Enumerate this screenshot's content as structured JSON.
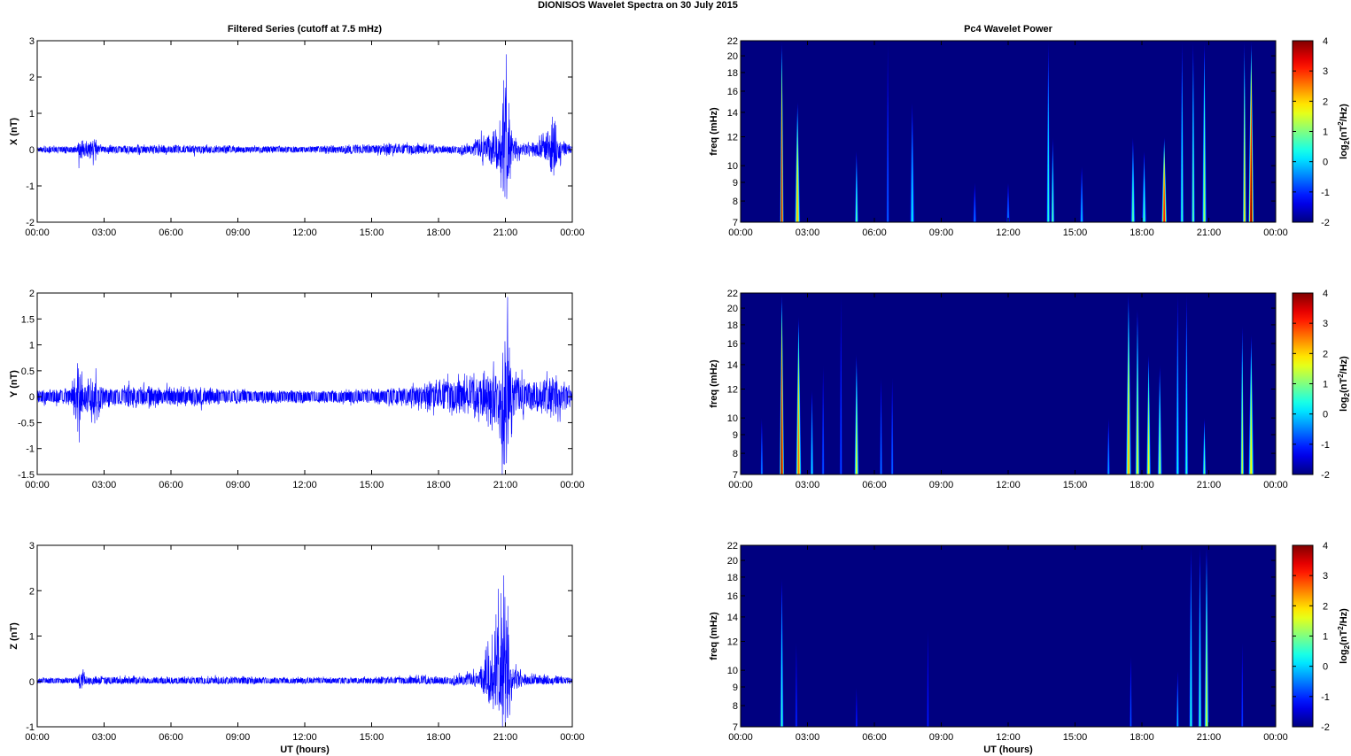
{
  "figure": {
    "title": "DIONISOS Wavelet Spectra on 30 July      2015"
  },
  "chart_data": [
    {
      "type": "line",
      "title": "Filtered Series (cutoff at 7.5 mHz)",
      "ylabel": "X (nT)",
      "xlabel": "",
      "x_ticks": [
        "00:00",
        "03:00",
        "06:00",
        "09:00",
        "12:00",
        "15:00",
        "18:00",
        "21:00",
        "00:00"
      ],
      "xlim_hours": [
        0,
        24
      ],
      "ylim": [
        -2,
        3
      ],
      "y_ticks": [
        "-2",
        "-1",
        "0",
        "1",
        "2",
        "3"
      ],
      "y_tick_values": [
        -2,
        -1,
        0,
        1,
        2,
        3
      ],
      "series_color": "#0000ff",
      "noise_floor": 0.04,
      "envelope": [
        [
          0,
          0.05
        ],
        [
          1.8,
          0.06
        ],
        [
          1.9,
          0.5
        ],
        [
          2.05,
          0.15
        ],
        [
          2.6,
          0.3
        ],
        [
          2.8,
          0.08
        ],
        [
          5.5,
          0.1
        ],
        [
          8,
          0.08
        ],
        [
          12,
          0.05
        ],
        [
          14,
          0.1
        ],
        [
          16.5,
          0.15
        ],
        [
          18,
          0.08
        ],
        [
          19.5,
          0.15
        ],
        [
          20.3,
          0.6
        ],
        [
          20.7,
          0.8
        ],
        [
          21.0,
          2.3
        ],
        [
          21.3,
          0.4
        ],
        [
          21.8,
          0.15
        ],
        [
          22.3,
          0.2
        ],
        [
          22.8,
          0.5
        ],
        [
          23.2,
          0.9
        ],
        [
          23.6,
          0.2
        ],
        [
          24,
          0.06
        ]
      ],
      "negative_scale": 0.9
    },
    {
      "type": "line",
      "title": "",
      "ylabel": "Y (nT)",
      "xlabel": "",
      "x_ticks": [
        "00:00",
        "03:00",
        "06:00",
        "09:00",
        "12:00",
        "15:00",
        "18:00",
        "21:00",
        "00:00"
      ],
      "xlim_hours": [
        0,
        24
      ],
      "ylim": [
        -1.5,
        2
      ],
      "y_ticks": [
        "-1.5",
        "-1",
        "-0.5",
        "0",
        "0.5",
        "1",
        "1.5",
        "2"
      ],
      "y_tick_values": [
        -1.5,
        -1,
        -0.5,
        0,
        0.5,
        1,
        1.5,
        2
      ],
      "series_color": "#0000ff",
      "noise_floor": 0.06,
      "envelope": [
        [
          0,
          0.08
        ],
        [
          1.5,
          0.1
        ],
        [
          1.9,
          0.75
        ],
        [
          2.1,
          0.3
        ],
        [
          2.6,
          0.5
        ],
        [
          3.0,
          0.15
        ],
        [
          6,
          0.14
        ],
        [
          9,
          0.08
        ],
        [
          12,
          0.06
        ],
        [
          15,
          0.08
        ],
        [
          17.5,
          0.2
        ],
        [
          18.2,
          0.35
        ],
        [
          19.5,
          0.3
        ],
        [
          20.3,
          0.7
        ],
        [
          20.8,
          1.0
        ],
        [
          21.1,
          1.9
        ],
        [
          21.4,
          0.4
        ],
        [
          22.5,
          0.3
        ],
        [
          23.3,
          0.4
        ],
        [
          24,
          0.1
        ]
      ],
      "negative_scale": 1.0
    },
    {
      "type": "line",
      "title": "",
      "ylabel": "Z (nT)",
      "xlabel": "UT (hours)",
      "x_ticks": [
        "00:00",
        "03:00",
        "06:00",
        "09:00",
        "12:00",
        "15:00",
        "18:00",
        "21:00",
        "00:00"
      ],
      "xlim_hours": [
        0,
        24
      ],
      "ylim": [
        -1,
        3
      ],
      "y_ticks": [
        "-1",
        "0",
        "1",
        "2",
        "3"
      ],
      "y_tick_values": [
        -1,
        0,
        1,
        2,
        3
      ],
      "series_color": "#0000ff",
      "noise_floor": 0.04,
      "envelope": [
        [
          0,
          0.04
        ],
        [
          1.8,
          0.05
        ],
        [
          1.95,
          0.35
        ],
        [
          2.2,
          0.1
        ],
        [
          5,
          0.07
        ],
        [
          9,
          0.08
        ],
        [
          12,
          0.05
        ],
        [
          15,
          0.06
        ],
        [
          18,
          0.1
        ],
        [
          19.8,
          0.2
        ],
        [
          20.2,
          1.2
        ],
        [
          20.7,
          1.6
        ],
        [
          21.0,
          2.6
        ],
        [
          21.3,
          0.5
        ],
        [
          21.8,
          0.15
        ],
        [
          24,
          0.06
        ]
      ],
      "negative_scale": 0.5
    },
    {
      "type": "heatmap",
      "title": "Pc4 Wavelet Power",
      "ylabel": "freq (mHz)",
      "xlabel": "",
      "x_ticks": [
        "00:00",
        "03:00",
        "06:00",
        "09:00",
        "12:00",
        "15:00",
        "18:00",
        "21:00",
        "00:00"
      ],
      "xlim_hours": [
        0,
        24
      ],
      "y_ticks": [
        "7",
        "8",
        "9",
        "10",
        "12",
        "14",
        "16",
        "18",
        "20",
        "22"
      ],
      "y_tick_values": [
        7,
        8,
        9,
        10,
        12,
        14,
        16,
        18,
        20,
        22
      ],
      "ylim_mHz": [
        7,
        22
      ],
      "log_frequency_axis": true,
      "colorbar_label": "log₂(nT²/Hz)",
      "colorbar_label_main": "log",
      "colorbar_label_sub": "2",
      "colorbar_label_mid": "(nT",
      "colorbar_label_sup": "2",
      "colorbar_label_end": "/Hz)",
      "colorbar_ticks": [
        "-2",
        "-1",
        "0",
        "1",
        "2",
        "3",
        "4"
      ],
      "colorbar_range": [
        -2,
        4
      ],
      "colormap": "jet",
      "background_value": -2,
      "features": [
        {
          "t": 1.85,
          "w": 0.08,
          "top": 22,
          "peak": 3.5
        },
        {
          "t": 2.55,
          "w": 0.12,
          "top": 15,
          "peak": 2.2
        },
        {
          "t": 5.2,
          "w": 0.08,
          "top": 11,
          "peak": 0.8
        },
        {
          "t": 6.6,
          "w": 0.06,
          "top": 22,
          "peak": -0.8
        },
        {
          "t": 6.6,
          "w": 0.06,
          "top": 20,
          "peak": -0.5
        },
        {
          "t": 7.7,
          "w": 0.1,
          "top": 15,
          "peak": 0.2
        },
        {
          "t": 10.5,
          "w": 0.08,
          "top": 9,
          "peak": -0.5
        },
        {
          "t": 12.0,
          "w": 0.08,
          "top": 9,
          "peak": -0.4
        },
        {
          "t": 13.8,
          "w": 0.08,
          "top": 22,
          "peak": 0.5
        },
        {
          "t": 14.0,
          "w": 0.08,
          "top": 12,
          "peak": 0.8
        },
        {
          "t": 15.3,
          "w": 0.08,
          "top": 10,
          "peak": 0.0
        },
        {
          "t": 17.6,
          "w": 0.1,
          "top": 12,
          "peak": 0.8
        },
        {
          "t": 18.1,
          "w": 0.1,
          "top": 11,
          "peak": 0.6
        },
        {
          "t": 19.0,
          "w": 0.12,
          "top": 12,
          "peak": 3.2
        },
        {
          "t": 19.8,
          "w": 0.08,
          "top": 22,
          "peak": 0.6
        },
        {
          "t": 20.3,
          "w": 0.08,
          "top": 22,
          "peak": 0.9
        },
        {
          "t": 20.8,
          "w": 0.1,
          "top": 22,
          "peak": 1.2
        },
        {
          "t": 22.6,
          "w": 0.08,
          "top": 22,
          "peak": 2.0
        },
        {
          "t": 22.9,
          "w": 0.12,
          "top": 22,
          "peak": 4.0
        }
      ]
    },
    {
      "type": "heatmap",
      "title": "",
      "ylabel": "freq (mHz)",
      "xlabel": "",
      "x_ticks": [
        "00:00",
        "03:00",
        "06:00",
        "09:00",
        "12:00",
        "15:00",
        "18:00",
        "21:00",
        "00:00"
      ],
      "xlim_hours": [
        0,
        24
      ],
      "y_ticks": [
        "7",
        "8",
        "9",
        "10",
        "12",
        "14",
        "16",
        "18",
        "20",
        "22"
      ],
      "y_tick_values": [
        7,
        8,
        9,
        10,
        12,
        14,
        16,
        18,
        20,
        22
      ],
      "ylim_mHz": [
        7,
        22
      ],
      "log_frequency_axis": true,
      "colorbar_label": "log₂(nT²/Hz)",
      "colorbar_label_main": "log",
      "colorbar_label_sub": "2",
      "colorbar_label_mid": "(nT",
      "colorbar_label_sup": "2",
      "colorbar_label_end": "/Hz)",
      "colorbar_ticks": [
        "-2",
        "-1",
        "0",
        "1",
        "2",
        "3",
        "4"
      ],
      "colorbar_range": [
        -2,
        4
      ],
      "colormap": "jet",
      "background_value": -2,
      "features": [
        {
          "t": 0.95,
          "w": 0.06,
          "top": 10,
          "peak": -0.3
        },
        {
          "t": 1.85,
          "w": 0.1,
          "top": 22,
          "peak": 3.8
        },
        {
          "t": 2.6,
          "w": 0.12,
          "top": 19,
          "peak": 2.6
        },
        {
          "t": 3.2,
          "w": 0.07,
          "top": 12,
          "peak": 0.3
        },
        {
          "t": 3.7,
          "w": 0.06,
          "top": 14,
          "peak": -0.6
        },
        {
          "t": 4.5,
          "w": 0.06,
          "top": 22,
          "peak": -0.7
        },
        {
          "t": 5.2,
          "w": 0.1,
          "top": 15,
          "peak": 1.6
        },
        {
          "t": 6.3,
          "w": 0.06,
          "top": 13,
          "peak": -0.4
        },
        {
          "t": 6.8,
          "w": 0.06,
          "top": 13,
          "peak": -0.5
        },
        {
          "t": 16.5,
          "w": 0.07,
          "top": 10,
          "peak": -0.2
        },
        {
          "t": 17.4,
          "w": 0.12,
          "top": 22,
          "peak": 2.2
        },
        {
          "t": 17.8,
          "w": 0.1,
          "top": 20,
          "peak": 1.6
        },
        {
          "t": 18.3,
          "w": 0.1,
          "top": 15,
          "peak": 1.8
        },
        {
          "t": 18.8,
          "w": 0.1,
          "top": 14,
          "peak": 1.2
        },
        {
          "t": 19.6,
          "w": 0.08,
          "top": 22,
          "peak": 0.3
        },
        {
          "t": 20.0,
          "w": 0.08,
          "top": 22,
          "peak": 0.5
        },
        {
          "t": 20.8,
          "w": 0.08,
          "top": 10,
          "peak": 0.8
        },
        {
          "t": 22.5,
          "w": 0.08,
          "top": 18,
          "peak": 1.5
        },
        {
          "t": 22.9,
          "w": 0.12,
          "top": 17,
          "peak": 1.8
        }
      ]
    },
    {
      "type": "heatmap",
      "title": "",
      "ylabel": "freq (mHz)",
      "xlabel": "UT (hours)",
      "x_ticks": [
        "00:00",
        "03:00",
        "06:00",
        "09:00",
        "12:00",
        "15:00",
        "18:00",
        "21:00",
        "00:00"
      ],
      "xlim_hours": [
        0,
        24
      ],
      "y_ticks": [
        "7",
        "8",
        "9",
        "10",
        "12",
        "14",
        "16",
        "18",
        "20",
        "22"
      ],
      "y_tick_values": [
        7,
        8,
        9,
        10,
        12,
        14,
        16,
        18,
        20,
        22
      ],
      "ylim_mHz": [
        7,
        22
      ],
      "log_frequency_axis": true,
      "colorbar_label": "log₂(nT²/Hz)",
      "colorbar_label_main": "log",
      "colorbar_label_sub": "2",
      "colorbar_label_mid": "(nT",
      "colorbar_label_sup": "2",
      "colorbar_label_end": "/Hz)",
      "colorbar_ticks": [
        "-2",
        "-1",
        "0",
        "1",
        "2",
        "3",
        "4"
      ],
      "colorbar_range": [
        -2,
        4
      ],
      "colormap": "jet",
      "background_value": -2,
      "features": [
        {
          "t": 1.85,
          "w": 0.08,
          "top": 18,
          "peak": 0.6
        },
        {
          "t": 2.5,
          "w": 0.05,
          "top": 12,
          "peak": -0.9
        },
        {
          "t": 5.2,
          "w": 0.05,
          "top": 9,
          "peak": -1.0
        },
        {
          "t": 8.4,
          "w": 0.05,
          "top": 13,
          "peak": -1.0
        },
        {
          "t": 17.5,
          "w": 0.05,
          "top": 11,
          "peak": -0.6
        },
        {
          "t": 19.6,
          "w": 0.06,
          "top": 10,
          "peak": 0.0
        },
        {
          "t": 20.2,
          "w": 0.08,
          "top": 22,
          "peak": 0.5
        },
        {
          "t": 20.6,
          "w": 0.08,
          "top": 22,
          "peak": 0.6
        },
        {
          "t": 20.9,
          "w": 0.1,
          "top": 22,
          "peak": 1.5
        },
        {
          "t": 22.5,
          "w": 0.05,
          "top": 12,
          "peak": -0.8
        }
      ]
    }
  ]
}
